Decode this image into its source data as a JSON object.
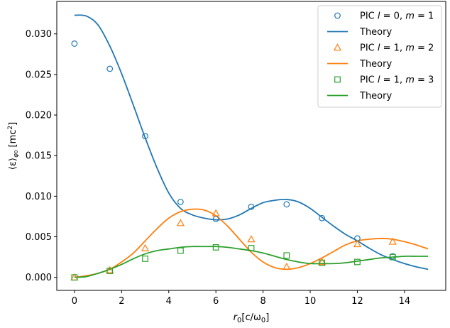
{
  "chart_data": {
    "type": "scatter",
    "xlabel": {
      "prefix": "r",
      "sub": "0",
      "bracket": "[c/ω",
      "sub2": "0",
      "close": "]"
    },
    "ylabel": {
      "open": "⟨ε⟩",
      "sub": "φ",
      "subsub": "0",
      "unit": " [mc",
      "sup": "2",
      "close": "]"
    },
    "xlim": [
      -0.75,
      15.75
    ],
    "ylim": [
      -0.0016,
      0.034
    ],
    "xticks": [
      0,
      2,
      4,
      6,
      8,
      10,
      12,
      14
    ],
    "xtick_labels": [
      "0",
      "2",
      "4",
      "6",
      "8",
      "10",
      "12",
      "14"
    ],
    "yticks": [
      0.0,
      0.005,
      0.01,
      0.015,
      0.02,
      0.025,
      0.03
    ],
    "ytick_labels": [
      "0.000",
      "0.005",
      "0.010",
      "0.015",
      "0.020",
      "0.025",
      "0.030"
    ],
    "grid": false,
    "legend_position": "top-right",
    "series": [
      {
        "name": "PIC l = 0, m = 1",
        "legend": {
          "prefix": "PIC ",
          "l": "l",
          "lval": " = 0, ",
          "m": "m",
          "mval": " = 1"
        },
        "kind": "markers",
        "marker": "circle",
        "color": "#1f77b4",
        "x": [
          0,
          1.5,
          3,
          4.5,
          6,
          7.5,
          9,
          10.5,
          12,
          13.5
        ],
        "y": [
          0.0288,
          0.0257,
          0.0174,
          0.0093,
          0.0072,
          0.0087,
          0.009,
          0.0073,
          0.0048,
          0.0026
        ]
      },
      {
        "name": "Theory",
        "legend": {
          "text": "Theory"
        },
        "kind": "line",
        "color": "#1f77b4",
        "x": [
          0,
          0.5,
          1,
          1.5,
          2,
          2.5,
          3,
          3.5,
          4,
          4.5,
          5,
          5.5,
          6,
          6.5,
          7,
          7.5,
          8,
          8.5,
          9,
          9.5,
          10,
          10.5,
          11,
          11.5,
          12,
          12.5,
          13,
          13.5,
          14,
          14.5,
          15
        ],
        "y": [
          0.0323,
          0.0322,
          0.0311,
          0.0285,
          0.0251,
          0.0212,
          0.0172,
          0.0135,
          0.0104,
          0.0085,
          0.0077,
          0.0073,
          0.0071,
          0.0072,
          0.0077,
          0.0085,
          0.0092,
          0.0095,
          0.0096,
          0.0093,
          0.0085,
          0.0074,
          0.0063,
          0.0053,
          0.0045,
          0.0036,
          0.0028,
          0.0022,
          0.0017,
          0.0013,
          0.001
        ]
      },
      {
        "name": "PIC l = 1, m = 2",
        "legend": {
          "prefix": "PIC ",
          "l": "l",
          "lval": " = 1, ",
          "m": "m",
          "mval": " = 2"
        },
        "kind": "markers",
        "marker": "triangle",
        "color": "#ff7f0e",
        "x": [
          0,
          1.5,
          3,
          4.5,
          6,
          7.5,
          9,
          10.5,
          12,
          13.5
        ],
        "y": [
          0.0,
          0.0009,
          0.0036,
          0.0067,
          0.0079,
          0.0047,
          0.0013,
          0.0019,
          0.0041,
          0.0044
        ]
      },
      {
        "name": "Theory",
        "legend": {
          "text": "Theory"
        },
        "kind": "line",
        "color": "#ff7f0e",
        "x": [
          0,
          0.5,
          1,
          1.5,
          2,
          2.5,
          3,
          3.5,
          4,
          4.5,
          5,
          5.5,
          6,
          6.5,
          7,
          7.5,
          8,
          8.5,
          9,
          9.5,
          10,
          10.5,
          11,
          11.5,
          12,
          12.5,
          13,
          13.5,
          14,
          14.5,
          15
        ],
        "y": [
          0.0,
          0.0002,
          0.0005,
          0.001,
          0.0019,
          0.003,
          0.0045,
          0.006,
          0.0073,
          0.0081,
          0.0084,
          0.0083,
          0.0076,
          0.0063,
          0.0047,
          0.0031,
          0.0019,
          0.0012,
          0.001,
          0.0012,
          0.0017,
          0.0024,
          0.0032,
          0.004,
          0.0045,
          0.0047,
          0.0048,
          0.0047,
          0.0044,
          0.004,
          0.0035
        ]
      },
      {
        "name": "PIC l = 1, m = 3",
        "legend": {
          "prefix": "PIC ",
          "l": "l",
          "lval": " = 1, ",
          "m": "m",
          "mval": " = 3"
        },
        "kind": "markers",
        "marker": "square",
        "color": "#2ca02c",
        "x": [
          0,
          1.5,
          3,
          4.5,
          6,
          7.5,
          9,
          10.5,
          12,
          13.5
        ],
        "y": [
          0.0,
          0.0008,
          0.0023,
          0.0033,
          0.0037,
          0.0036,
          0.0027,
          0.0018,
          0.0019,
          0.0025
        ]
      },
      {
        "name": "Theory",
        "legend": {
          "text": "Theory"
        },
        "kind": "line",
        "color": "#2ca02c",
        "x": [
          0,
          0.5,
          1,
          1.5,
          2,
          2.5,
          3,
          3.5,
          4,
          4.5,
          5,
          5.5,
          6,
          6.5,
          7,
          7.5,
          8,
          8.5,
          9,
          9.5,
          10,
          10.5,
          11,
          11.5,
          12,
          12.5,
          13,
          13.5,
          14,
          14.5,
          15
        ],
        "y": [
          0.0,
          0.0001,
          0.0005,
          0.001,
          0.0016,
          0.0023,
          0.0029,
          0.0033,
          0.0035,
          0.0037,
          0.0038,
          0.0038,
          0.0038,
          0.0037,
          0.0035,
          0.0033,
          0.003,
          0.0026,
          0.0022,
          0.0019,
          0.0017,
          0.0017,
          0.0017,
          0.0018,
          0.002,
          0.0022,
          0.0024,
          0.0025,
          0.0026,
          0.0026,
          0.0026
        ]
      }
    ]
  }
}
